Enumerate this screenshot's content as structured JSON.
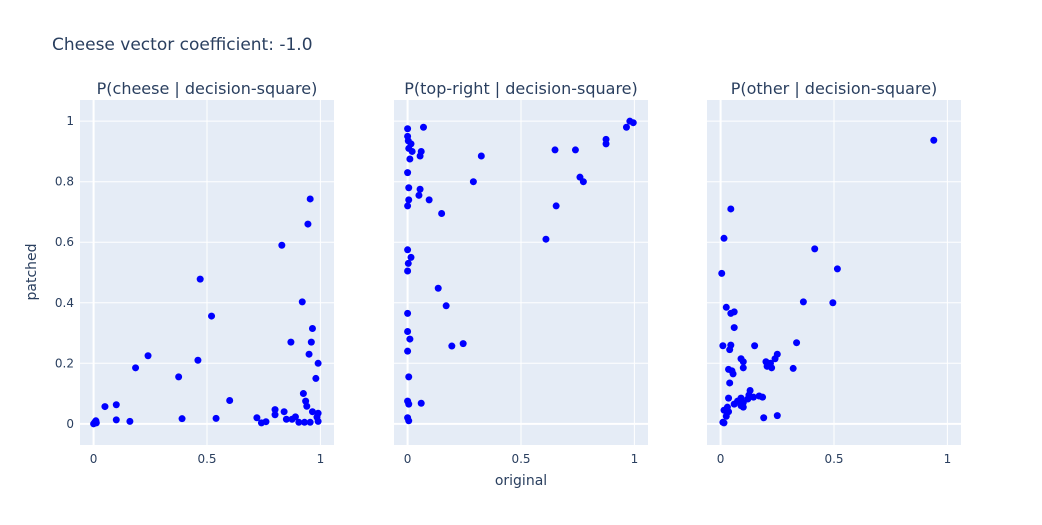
{
  "figure": {
    "title": "Cheese vector coefficient: -1.0",
    "xlabel": "original",
    "ylabel": "patched"
  },
  "style": {
    "plot_bg": "#e5ecf6",
    "grid": "#ffffff",
    "marker": "#0000ff",
    "text": "#2a3f5f"
  },
  "chart_data": [
    {
      "type": "scatter",
      "title": "P(cheese | decision-square)",
      "xlim": [
        -0.06,
        1.06
      ],
      "ylim": [
        -0.07,
        1.07
      ],
      "xticks": [
        0,
        0.5,
        1
      ],
      "xtick_labels": [
        "0",
        "0.5",
        "1"
      ],
      "yticks": [
        0,
        0.2,
        0.4,
        0.6,
        0.8,
        1
      ],
      "ytick_labels": [
        "0",
        "0.2",
        "0.4",
        "0.6",
        "0.8",
        "1"
      ],
      "points": [
        [
          0.0,
          0.0
        ],
        [
          0.005,
          0.005
        ],
        [
          0.01,
          0.01
        ],
        [
          0.012,
          0.003
        ],
        [
          0.05,
          0.057
        ],
        [
          0.1,
          0.063
        ],
        [
          0.1,
          0.013
        ],
        [
          0.16,
          0.008
        ],
        [
          0.185,
          0.185
        ],
        [
          0.24,
          0.225
        ],
        [
          0.375,
          0.155
        ],
        [
          0.39,
          0.017
        ],
        [
          0.46,
          0.21
        ],
        [
          0.47,
          0.478
        ],
        [
          0.52,
          0.356
        ],
        [
          0.54,
          0.018
        ],
        [
          0.6,
          0.077
        ],
        [
          0.72,
          0.02
        ],
        [
          0.74,
          0.003
        ],
        [
          0.76,
          0.007
        ],
        [
          0.8,
          0.047
        ],
        [
          0.8,
          0.03
        ],
        [
          0.83,
          0.59
        ],
        [
          0.84,
          0.04
        ],
        [
          0.85,
          0.015
        ],
        [
          0.87,
          0.27
        ],
        [
          0.875,
          0.015
        ],
        [
          0.89,
          0.023
        ],
        [
          0.905,
          0.005
        ],
        [
          0.92,
          0.403
        ],
        [
          0.925,
          0.1
        ],
        [
          0.93,
          0.005
        ],
        [
          0.935,
          0.075
        ],
        [
          0.94,
          0.058
        ],
        [
          0.945,
          0.66
        ],
        [
          0.95,
          0.23
        ],
        [
          0.955,
          0.743
        ],
        [
          0.955,
          0.005
        ],
        [
          0.96,
          0.27
        ],
        [
          0.965,
          0.315
        ],
        [
          0.965,
          0.04
        ],
        [
          0.98,
          0.15
        ],
        [
          0.985,
          0.022
        ],
        [
          0.99,
          0.2
        ],
        [
          0.99,
          0.035
        ],
        [
          0.99,
          0.008
        ]
      ]
    },
    {
      "type": "scatter",
      "title": "P(top-right | decision-square)",
      "xlim": [
        -0.06,
        1.06
      ],
      "ylim": [
        -0.07,
        1.07
      ],
      "xticks": [
        0,
        0.5,
        1
      ],
      "xtick_labels": [
        "0",
        "0.5",
        "1"
      ],
      "yticks": [
        0,
        0.2,
        0.4,
        0.6,
        0.8,
        1
      ],
      "ytick_labels": [
        "0",
        "0.2",
        "0.4",
        "0.6",
        "0.8",
        "1"
      ],
      "points": [
        [
          0.0,
          0.975
        ],
        [
          0.0,
          0.95
        ],
        [
          0.003,
          0.935
        ],
        [
          0.005,
          0.91
        ],
        [
          0.015,
          0.925
        ],
        [
          0.02,
          0.9
        ],
        [
          0.01,
          0.875
        ],
        [
          0.07,
          0.98
        ],
        [
          0.06,
          0.9
        ],
        [
          0.055,
          0.885
        ],
        [
          0.0,
          0.83
        ],
        [
          0.005,
          0.78
        ],
        [
          0.005,
          0.74
        ],
        [
          0.0,
          0.72
        ],
        [
          0.05,
          0.755
        ],
        [
          0.055,
          0.775
        ],
        [
          0.095,
          0.74
        ],
        [
          0.15,
          0.695
        ],
        [
          0.0,
          0.575
        ],
        [
          0.015,
          0.55
        ],
        [
          0.003,
          0.53
        ],
        [
          0.0,
          0.505
        ],
        [
          0.135,
          0.448
        ],
        [
          0.17,
          0.39
        ],
        [
          0.0,
          0.365
        ],
        [
          0.0,
          0.305
        ],
        [
          0.01,
          0.28
        ],
        [
          0.0,
          0.24
        ],
        [
          0.195,
          0.257
        ],
        [
          0.245,
          0.265
        ],
        [
          0.005,
          0.155
        ],
        [
          0.0,
          0.075
        ],
        [
          0.005,
          0.065
        ],
        [
          0.06,
          0.068
        ],
        [
          0.0,
          0.02
        ],
        [
          0.005,
          0.01
        ],
        [
          0.325,
          0.885
        ],
        [
          0.29,
          0.8
        ],
        [
          0.65,
          0.905
        ],
        [
          0.74,
          0.905
        ],
        [
          0.76,
          0.815
        ],
        [
          0.775,
          0.8
        ],
        [
          0.655,
          0.72
        ],
        [
          0.61,
          0.61
        ],
        [
          0.875,
          0.925
        ],
        [
          0.875,
          0.94
        ],
        [
          0.965,
          0.98
        ],
        [
          0.98,
          1.0
        ],
        [
          0.995,
          0.995
        ]
      ]
    },
    {
      "type": "scatter",
      "title": "P(other | decision-square)",
      "xlim": [
        -0.06,
        1.06
      ],
      "ylim": [
        -0.07,
        1.07
      ],
      "xticks": [
        0,
        0.5,
        1
      ],
      "xtick_labels": [
        "0",
        "0.5",
        "1"
      ],
      "yticks": [
        0,
        0.2,
        0.4,
        0.6,
        0.8,
        1
      ],
      "ytick_labels": [
        "0",
        "0.2",
        "0.4",
        "0.6",
        "0.8",
        "1"
      ],
      "points": [
        [
          0.94,
          0.937
        ],
        [
          0.045,
          0.71
        ],
        [
          0.015,
          0.613
        ],
        [
          0.005,
          0.497
        ],
        [
          0.415,
          0.578
        ],
        [
          0.515,
          0.512
        ],
        [
          0.365,
          0.403
        ],
        [
          0.495,
          0.4
        ],
        [
          0.025,
          0.385
        ],
        [
          0.045,
          0.365
        ],
        [
          0.06,
          0.37
        ],
        [
          0.06,
          0.318
        ],
        [
          0.01,
          0.258
        ],
        [
          0.045,
          0.26
        ],
        [
          0.04,
          0.245
        ],
        [
          0.335,
          0.268
        ],
        [
          0.32,
          0.183
        ],
        [
          0.15,
          0.258
        ],
        [
          0.25,
          0.23
        ],
        [
          0.24,
          0.215
        ],
        [
          0.2,
          0.205
        ],
        [
          0.22,
          0.2
        ],
        [
          0.205,
          0.19
        ],
        [
          0.225,
          0.185
        ],
        [
          0.09,
          0.215
        ],
        [
          0.1,
          0.205
        ],
        [
          0.1,
          0.185
        ],
        [
          0.035,
          0.18
        ],
        [
          0.05,
          0.175
        ],
        [
          0.055,
          0.165
        ],
        [
          0.04,
          0.135
        ],
        [
          0.13,
          0.11
        ],
        [
          0.125,
          0.095
        ],
        [
          0.145,
          0.088
        ],
        [
          0.17,
          0.092
        ],
        [
          0.185,
          0.088
        ],
        [
          0.09,
          0.085
        ],
        [
          0.075,
          0.075
        ],
        [
          0.1,
          0.07
        ],
        [
          0.12,
          0.082
        ],
        [
          0.06,
          0.065
        ],
        [
          0.09,
          0.06
        ],
        [
          0.1,
          0.055
        ],
        [
          0.035,
          0.085
        ],
        [
          0.03,
          0.055
        ],
        [
          0.015,
          0.045
        ],
        [
          0.035,
          0.04
        ],
        [
          0.025,
          0.025
        ],
        [
          0.19,
          0.02
        ],
        [
          0.25,
          0.027
        ],
        [
          0.01,
          0.005
        ],
        [
          0.015,
          0.003
        ]
      ]
    }
  ]
}
